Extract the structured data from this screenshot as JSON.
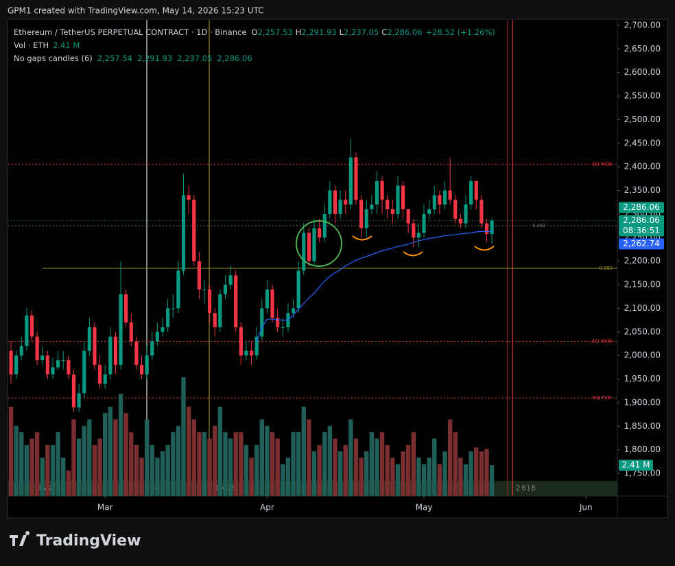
{
  "header": {
    "caption": "GPM1 created with TradingView.com, May 14, 2026 15:23 UTC",
    "brand": "TradingView"
  },
  "chart_data": {
    "type": "candlestick",
    "title": "Ethereum / TetherUS PERPETUAL CONTRACT · 1D · Binance",
    "ohlc_legend": [
      {
        "key": "O",
        "text": "2,257.53"
      },
      {
        "key": "H",
        "text": "2,291.93"
      },
      {
        "key": "L",
        "text": "2,237.05"
      },
      {
        "key": "C",
        "text": "2,286.06"
      }
    ],
    "change_text": "+28.52 (+1.26%)",
    "volume_legend": {
      "name": "Vol · ETH",
      "text": "2.41 M"
    },
    "indicator_legend": {
      "name": "No gaps candles (6)",
      "texts": [
        "2,257.54",
        "2,291.93",
        "2,237.05",
        "2,286.06"
      ]
    },
    "xlim": [
      -0.66,
      116
    ],
    "xticks": [
      {
        "value": 18,
        "label": "Mar"
      },
      {
        "value": 49,
        "label": "Apr"
      },
      {
        "value": 79,
        "label": "May"
      },
      {
        "value": 110,
        "label": "Jun"
      }
    ],
    "ylim": [
      1702,
      2713
    ],
    "yticks": [
      {
        "value": 1750,
        "label": "1,750.00"
      },
      {
        "value": 1800,
        "label": "1,800.00"
      },
      {
        "value": 1850,
        "label": "1,850.00"
      },
      {
        "value": 1900,
        "label": "1,900.00"
      },
      {
        "value": 1950,
        "label": "1,950.00"
      },
      {
        "value": 2000,
        "label": "2,000.00"
      },
      {
        "value": 2050,
        "label": "2,050.00"
      },
      {
        "value": 2100,
        "label": "2,100.00"
      },
      {
        "value": 2150,
        "label": "2,150.00"
      },
      {
        "value": 2200,
        "label": "2,200.00"
      },
      {
        "value": 2250,
        "label": "2,250.00"
      },
      {
        "value": 2300,
        "label": "2,300.00"
      },
      {
        "value": 2350,
        "label": "2,350.00"
      },
      {
        "value": 2400,
        "label": "2,400.00"
      },
      {
        "value": 2450,
        "label": "2,450.00"
      },
      {
        "value": 2500,
        "label": "2,500.00"
      },
      {
        "value": 2550,
        "label": "2,550.00"
      },
      {
        "value": 2600,
        "label": "2,600.00"
      },
      {
        "value": 2650,
        "label": "2,650.00"
      },
      {
        "value": 2700,
        "label": "2,700.00"
      }
    ],
    "up_color": "#089981",
    "down_color": "#f23645",
    "open": [
      2010,
      1960,
      2000,
      2020,
      2085,
      2040,
      1990,
      2000,
      1960,
      1975,
      1990,
      1990,
      1960,
      1890,
      1920,
      2010,
      2060,
      1980,
      1940,
      1960,
      2040,
      1980,
      2130,
      2070,
      2030,
      1980,
      1960,
      2000,
      2030,
      2050,
      2060,
      2100,
      2100,
      2180,
      2340,
      2330,
      2200,
      2140,
      2140,
      2090,
      2060,
      2130,
      2150,
      2170,
      2060,
      2000,
      2010,
      2000,
      2040,
      2100,
      2140,
      2080,
      2060,
      2060,
      2090,
      2100,
      2180,
      2260,
      2200,
      2270,
      2250,
      2300,
      2350,
      2300,
      2330,
      2320,
      2420,
      2330,
      2270,
      2310,
      2320,
      2370,
      2330,
      2310,
      2300,
      2360,
      2310,
      2280,
      2250,
      2260,
      2300,
      2310,
      2340,
      2320,
      2350,
      2330,
      2290,
      2280,
      2320,
      2370,
      2330,
      2280,
      2257.53
    ],
    "high": [
      2030,
      2010,
      2040,
      2100,
      2095,
      2050,
      2020,
      2010,
      1995,
      2010,
      2010,
      2000,
      1970,
      1940,
      2030,
      2080,
      2070,
      2000,
      1980,
      2060,
      2050,
      2200,
      2140,
      2090,
      2040,
      2000,
      2020,
      2050,
      2070,
      2080,
      2120,
      2130,
      2200,
      2385,
      2360,
      2340,
      2220,
      2160,
      2150,
      2100,
      2140,
      2170,
      2190,
      2180,
      2070,
      2030,
      2030,
      2060,
      2120,
      2160,
      2150,
      2100,
      2080,
      2110,
      2120,
      2200,
      2280,
      2270,
      2290,
      2290,
      2320,
      2370,
      2360,
      2350,
      2350,
      2460,
      2430,
      2340,
      2330,
      2340,
      2390,
      2380,
      2340,
      2330,
      2380,
      2370,
      2310,
      2290,
      2280,
      2320,
      2330,
      2360,
      2350,
      2370,
      2420,
      2340,
      2300,
      2340,
      2380,
      2370,
      2340,
      2290,
      2291.93
    ],
    "low": [
      1940,
      1950,
      1990,
      2010,
      2030,
      1980,
      1980,
      1950,
      1950,
      1970,
      1970,
      1950,
      1880,
      1880,
      1910,
      2000,
      1970,
      1930,
      1930,
      1950,
      1960,
      1970,
      2060,
      2020,
      1970,
      1950,
      1950,
      1990,
      2020,
      2040,
      2050,
      2080,
      2090,
      2170,
      2300,
      2190,
      2120,
      2110,
      2070,
      2040,
      2050,
      2120,
      2140,
      2050,
      1980,
      1990,
      1980,
      1990,
      2030,
      2090,
      2070,
      2050,
      2040,
      2050,
      2080,
      2090,
      2170,
      2190,
      2190,
      2240,
      2240,
      2290,
      2280,
      2290,
      2300,
      2310,
      2320,
      2250,
      2250,
      2300,
      2300,
      2300,
      2290,
      2280,
      2290,
      2290,
      2260,
      2230,
      2230,
      2250,
      2290,
      2300,
      2300,
      2310,
      2320,
      2280,
      2270,
      2270,
      2310,
      2310,
      2270,
      2240,
      2237.05
    ],
    "close": [
      1960,
      2000,
      2020,
      2085,
      2040,
      1990,
      2000,
      1960,
      1975,
      1990,
      1990,
      1960,
      1890,
      1920,
      2010,
      2060,
      1980,
      1940,
      1960,
      2040,
      1980,
      2130,
      2070,
      2030,
      1980,
      1960,
      2000,
      2030,
      2050,
      2060,
      2100,
      2100,
      2180,
      2340,
      2330,
      2200,
      2140,
      2140,
      2090,
      2060,
      2130,
      2150,
      2170,
      2060,
      2000,
      2010,
      2000,
      2040,
      2100,
      2140,
      2080,
      2060,
      2060,
      2090,
      2100,
      2180,
      2260,
      2200,
      2270,
      2250,
      2300,
      2350,
      2300,
      2330,
      2320,
      2420,
      2330,
      2270,
      2310,
      2320,
      2370,
      2330,
      2310,
      2300,
      2360,
      2310,
      2280,
      2250,
      2260,
      2300,
      2310,
      2340,
      2320,
      2350,
      2330,
      2290,
      2280,
      2320,
      2370,
      2330,
      2280,
      2257.53,
      2286.06
    ],
    "volume": [
      7,
      5.5,
      5,
      4,
      4.5,
      5,
      3,
      4,
      4,
      5,
      3,
      2,
      6,
      4.5,
      5.5,
      6,
      4,
      4.5,
      6.5,
      7,
      6,
      8,
      6.5,
      5,
      4,
      3,
      6,
      4,
      3,
      3.5,
      4,
      5,
      5.5,
      9.3,
      7,
      6,
      5,
      5,
      4.5,
      5.5,
      7,
      5,
      4.5,
      5,
      5,
      4,
      3,
      4,
      6,
      5.5,
      5,
      4.5,
      2.5,
      3,
      5,
      5,
      7,
      6,
      3.5,
      4,
      5,
      5.5,
      4.5,
      3.5,
      4,
      6,
      4.5,
      3,
      3.5,
      5,
      4.5,
      5,
      4,
      3,
      2.5,
      3.5,
      4,
      5,
      3,
      2.5,
      3,
      4.5,
      2.5,
      3.5,
      6,
      5,
      3,
      2.5,
      3.5,
      3.8,
      3.5,
      3.7,
      2.41
    ],
    "volume_last": {
      "value": 2.41,
      "label": "2.41 M"
    },
    "ma": {
      "color": "#2962ff",
      "values": [
        null,
        null,
        null,
        null,
        null,
        null,
        null,
        null,
        null,
        null,
        null,
        null,
        null,
        null,
        null,
        null,
        null,
        null,
        null,
        null,
        null,
        null,
        null,
        null,
        null,
        null,
        null,
        null,
        null,
        null,
        null,
        null,
        null,
        null,
        null,
        null,
        null,
        null,
        null,
        null,
        null,
        null,
        null,
        null,
        null,
        null,
        null,
        2030,
        2060,
        2077,
        2077,
        2076,
        2075,
        2075,
        2085,
        2099,
        2110,
        2122,
        2132,
        2145,
        2158,
        2168,
        2175,
        2182,
        2190,
        2196,
        2202,
        2206,
        2210,
        2214,
        2218,
        2222,
        2225,
        2228,
        2231,
        2233,
        2236,
        2240,
        2243,
        2246,
        2248,
        2250,
        2252,
        2254,
        2255,
        2256,
        2258,
        2259,
        2260,
        2262,
        2263,
        2263,
        2262.74
      ]
    },
    "last_price": {
      "value": 2286.06,
      "label": "2,286.06"
    },
    "countdown": "08:36:51",
    "ma_last": {
      "value": 2262.74,
      "label": "2,262.74"
    },
    "levels": [
      {
        "label": "EQ MOB",
        "value": 2405,
        "color": "#f23645"
      },
      {
        "label": "EQ WOB",
        "value": 2030,
        "color": "#f23645"
      },
      {
        "label": "EQ FVG",
        "value": 1910,
        "color": "#f23645"
      },
      {
        "label": "0.382",
        "value": 2185,
        "color": "#8d8d2a"
      },
      {
        "label": "0.382",
        "value": 2275,
        "color": "#777777"
      }
    ],
    "annotations": [
      "1w(2x)",
      "3",
      "1.618",
      "2",
      "618"
    ]
  }
}
